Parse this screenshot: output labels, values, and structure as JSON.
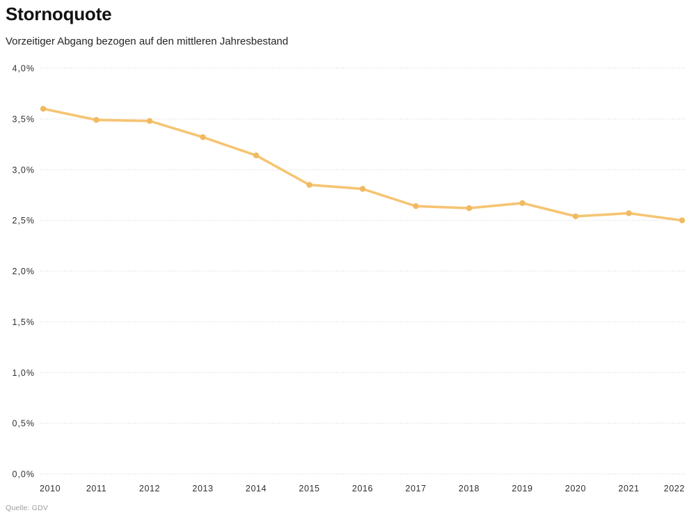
{
  "header": {
    "title": "Stornoquote",
    "subtitle": "Vorzeitiger Abgang bezogen auf den mittleren Jahresbestand"
  },
  "footer": {
    "source": "Quelle: GDV"
  },
  "chart_data": {
    "type": "line",
    "title": "Stornoquote",
    "subtitle": "Vorzeitiger Abgang bezogen auf den mittleren Jahresbestand",
    "source": "Quelle: GDV",
    "x": [
      2010,
      2011,
      2012,
      2013,
      2014,
      2015,
      2016,
      2017,
      2018,
      2019,
      2020,
      2021,
      2022
    ],
    "series": [
      {
        "name": "Stornoquote",
        "values": [
          3.6,
          3.49,
          3.48,
          3.32,
          3.14,
          2.85,
          2.81,
          2.64,
          2.62,
          2.67,
          2.54,
          2.57,
          2.5
        ]
      }
    ],
    "x_tick_labels": [
      "2010",
      "2011",
      "2012",
      "2013",
      "2014",
      "2015",
      "2016",
      "2017",
      "2018",
      "2019",
      "2020",
      "2021",
      "2022"
    ],
    "y_tick_labels": [
      "0,0%",
      "0,5%",
      "1,0%",
      "1,5%",
      "2,0%",
      "2,5%",
      "3,0%",
      "3,5%",
      "4,0%"
    ],
    "ylim": [
      0,
      4
    ],
    "y_tick_step": 0.5,
    "grid": "horizontal-dotted",
    "legend": "none",
    "colors": {
      "line": "#F6C472",
      "marker": "#F0BA62",
      "grid": "#D7D7D7",
      "tick_text": "#2E2E2E"
    }
  }
}
